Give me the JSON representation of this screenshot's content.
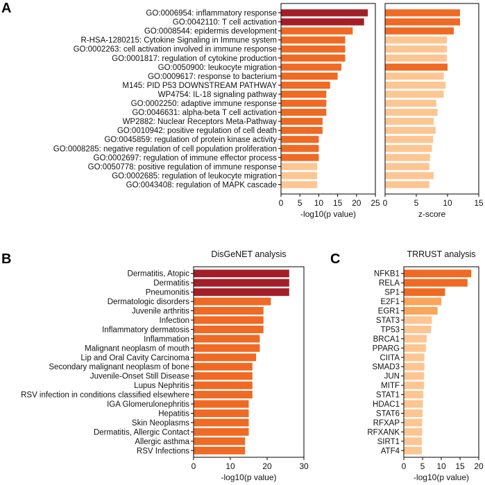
{
  "colors": {
    "dark": "#a31f28",
    "mid": "#ef6a25",
    "light": "#f9a55b",
    "pale": "#fcc693",
    "axis": "#000000"
  },
  "chart_data": [
    {
      "panel": "A",
      "type": "bar",
      "orientation": "horizontal",
      "title": "",
      "xlabel": "-log10(p value)",
      "xlim": [
        0,
        25
      ],
      "xticks": [
        0,
        5,
        10,
        15,
        20,
        25
      ],
      "categories": [
        "GO:0006954: inflammatory response",
        "GO:0042110: T cell activation",
        "GO:0008544: epidermis development",
        "R-HSA-1280215: Cytokine Signaling in Immune system",
        "GO:0002263: cell activation involved in immune response",
        "GO:0001817: regulation of cytokine production",
        "GO:0050900: leukocyte migration",
        "GO:0009617: response to bacterium",
        "M145: PID P53 DOWNSTREAM PATHWAY",
        "WP4754: IL-18 signaling pathway",
        "GO:0002250: adaptive immune response",
        "GO:0046631: alpha-beta T cell activation",
        "WP2882: Nuclear Receptors Meta-Pathway",
        "GO:0010942: positive regulation of cell death",
        "GO:0045859: regulation of protein kinase activity",
        "GO:0008285: negative regulation of cell population proliferation",
        "GO:0002697: regulation of immune effector process",
        "GO:0050778: positive regulation of immune response",
        "GO:0002685: regulation of leukocyte migration",
        "GO:0043408: regulation of MAPK cascade"
      ],
      "values": [
        23,
        22,
        19,
        17,
        17,
        17,
        16,
        15,
        13,
        12,
        12,
        12,
        11,
        11,
        10,
        10,
        10,
        9.6,
        9.6,
        9.6
      ],
      "color_levels": [
        "dark",
        "dark",
        "mid",
        "mid",
        "mid",
        "mid",
        "mid",
        "mid",
        "mid",
        "mid",
        "mid",
        "mid",
        "mid",
        "mid",
        "mid",
        "mid",
        "mid",
        "pale",
        "pale",
        "pale"
      ]
    },
    {
      "panel": "A2",
      "type": "bar",
      "orientation": "horizontal",
      "title": "",
      "xlabel": "z-score",
      "xlim": [
        0,
        15
      ],
      "xticks": [
        0,
        5,
        10,
        15
      ],
      "values": [
        12,
        12,
        11,
        9.9,
        9.9,
        9.9,
        10,
        9.4,
        9.7,
        9.4,
        8.2,
        8.4,
        7.8,
        8.1,
        7.7,
        7.5,
        7.2,
        7.1,
        7.8,
        7.1
      ],
      "color_levels": [
        "mid",
        "mid",
        "mid",
        "pale",
        "pale",
        "pale",
        "mid",
        "pale",
        "pale",
        "pale",
        "pale",
        "pale",
        "pale",
        "pale",
        "pale",
        "pale",
        "pale",
        "pale",
        "pale",
        "pale"
      ]
    },
    {
      "panel": "B",
      "type": "bar",
      "orientation": "horizontal",
      "title": "DisGeNET  analysis",
      "xlabel": "-log10(p value)",
      "xlim": [
        0,
        30
      ],
      "xticks": [
        0,
        10,
        20,
        30
      ],
      "categories": [
        "Dermatitis, Atopic",
        "Dermatitis",
        "Pneumonitis",
        "Dermatologic disorders",
        "Juvenile arthritis",
        "Infection",
        "Inflammatory dermatosis",
        "Inflammation",
        "Malignant neoplasm of mouth",
        "Lip and Oral Cavity Carcinoma",
        "Secondary malignant neoplasm of bone",
        "Juvenile-Onset Still Disease",
        "Lupus Nephritis",
        "RSV infection in conditions classified elsewhere",
        "IGA Glomerulonephritis",
        "Hepatitis",
        "Skin Neoplasms",
        "Dermatitis, Allergic Contact",
        "Allergic asthma",
        "RSV Infections"
      ],
      "values": [
        26,
        26,
        26,
        21,
        19,
        19,
        19,
        18,
        18,
        17,
        16,
        16,
        16,
        16,
        15,
        15,
        15,
        15,
        14,
        14
      ],
      "color_levels": [
        "dark",
        "dark",
        "dark",
        "mid",
        "mid",
        "mid",
        "mid",
        "mid",
        "mid",
        "mid",
        "mid",
        "mid",
        "mid",
        "mid",
        "mid",
        "mid",
        "mid",
        "mid",
        "mid",
        "mid"
      ]
    },
    {
      "panel": "C",
      "type": "bar",
      "orientation": "horizontal",
      "title": "TRRUST analysis",
      "xlabel": "-log10(p value)",
      "xlim": [
        0,
        20
      ],
      "xticks": [
        0,
        5,
        10,
        15,
        20
      ],
      "categories": [
        "NFKB1",
        "RELA",
        "SP1",
        "E2F1",
        "EGR1",
        "STAT3",
        "TP53",
        "BRCA1",
        "PPARG",
        "CIITA",
        "SMAD3",
        "JUN",
        "MITF",
        "STAT1",
        "HDAC1",
        "STAT6",
        "RFXAP",
        "RFXANK",
        "SIRT1",
        "ATF4"
      ],
      "values": [
        18,
        17,
        11,
        10,
        9,
        7.5,
        7.3,
        6.1,
        5.9,
        5.5,
        5.5,
        5.4,
        5.4,
        5.2,
        5.1,
        5.0,
        4.9,
        4.9,
        4.8,
        4.8
      ],
      "color_levels": [
        "mid",
        "mid",
        "mid",
        "light",
        "light",
        "pale",
        "pale",
        "pale",
        "pale",
        "pale",
        "pale",
        "pale",
        "pale",
        "pale",
        "pale",
        "pale",
        "pale",
        "pale",
        "pale",
        "pale"
      ]
    }
  ],
  "panel_labels": {
    "a": "A",
    "b": "B",
    "c": "C"
  }
}
